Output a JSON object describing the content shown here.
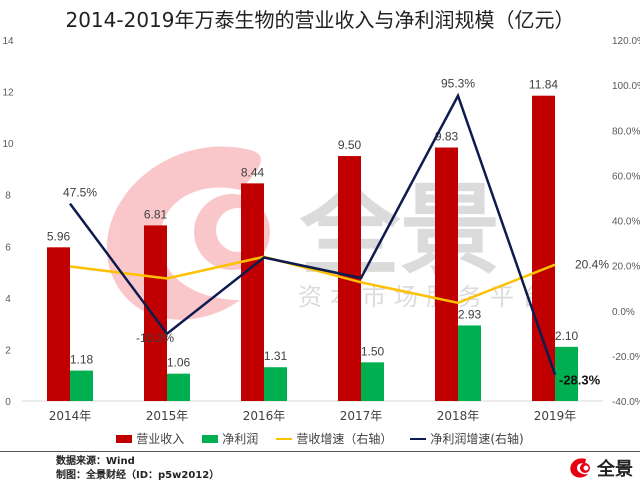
{
  "title": "2014-2019年万泰生物的营业收入与净利润规模（亿元）",
  "chart_data": {
    "type": "bar+line",
    "title": "2014-2019年万泰生物的营业收入与净利润规模（亿元）",
    "categories": [
      "2014年",
      "2015年",
      "2016年",
      "2017年",
      "2018年",
      "2019年"
    ],
    "series": [
      {
        "name": "营业收入",
        "type": "bar",
        "axis": "left",
        "color": "#C00000",
        "values": [
          5.96,
          6.81,
          8.44,
          9.5,
          9.83,
          11.84
        ],
        "labels": [
          "5.96",
          "6.81",
          "8.44",
          "9.50",
          "9.83",
          "11.84"
        ]
      },
      {
        "name": "净利润",
        "type": "bar",
        "axis": "left",
        "color": "#00B050",
        "values": [
          1.18,
          1.06,
          1.31,
          1.5,
          2.93,
          2.1
        ],
        "labels": [
          "1.18",
          "1.06",
          "1.31",
          "1.50",
          "2.93",
          "2.10"
        ]
      },
      {
        "name": "营收增速（右轴）",
        "type": "line",
        "axis": "right",
        "color": "#FFC000",
        "values": [
          19.6,
          14.3,
          23.9,
          12.6,
          3.5,
          20.4
        ],
        "labels": [
          "",
          "",
          "",
          "",
          "",
          "20.4%"
        ]
      },
      {
        "name": "净利润增速(右轴)",
        "type": "line",
        "axis": "right",
        "color": "#0D1B4F",
        "values": [
          47.5,
          -10.2,
          23.6,
          14.5,
          95.3,
          -28.3
        ],
        "labels": [
          "47.5%",
          "-10.2%",
          "",
          "",
          "95.3%",
          "-28.3%"
        ]
      }
    ],
    "left_axis": {
      "ylim": [
        0,
        14
      ],
      "ticks": [
        "0",
        "2",
        "4",
        "6",
        "8",
        "10",
        "12",
        "14"
      ]
    },
    "right_axis": {
      "ylim": [
        -40,
        120
      ],
      "ticks": [
        "-40.0%",
        "-20.0%",
        "0.0%",
        "20.0%",
        "40.0%",
        "60.0%",
        "80.0%",
        "100.0%",
        "120.0%"
      ]
    },
    "grid": false,
    "legend_position": "bottom"
  },
  "legend": [
    {
      "label": "营业收入",
      "color": "#C00000",
      "kind": "bar"
    },
    {
      "label": "净利润",
      "color": "#00B050",
      "kind": "bar"
    },
    {
      "label": "营收增速（右轴）",
      "color": "#FFC000",
      "kind": "line"
    },
    {
      "label": "净利润增速(右轴)",
      "color": "#0D1B4F",
      "kind": "line"
    }
  ],
  "footer": {
    "source": "数据来源：Wind",
    "credit": "制图：全景财经（ID：p5w2012）"
  },
  "logo": {
    "text": "全景"
  },
  "watermark": {
    "text_big": "全景",
    "text_small": "资本市场服务平台"
  }
}
